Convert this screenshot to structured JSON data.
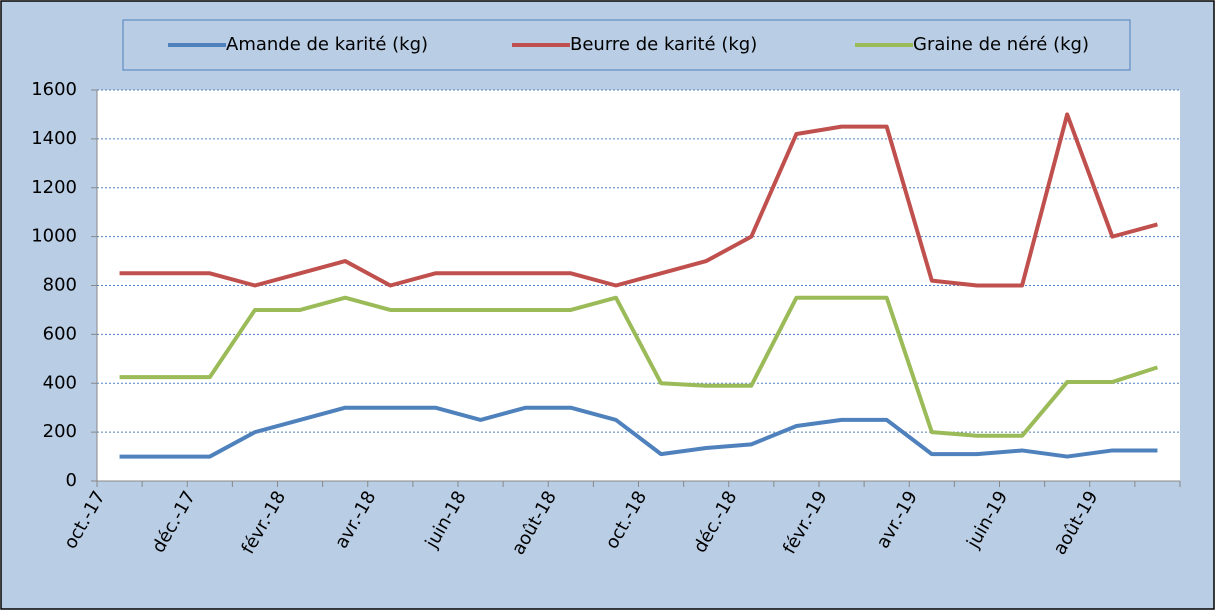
{
  "chart_data": {
    "type": "line",
    "categories": [
      "oct.-17",
      null,
      "déc.-17",
      null,
      "févr.-18",
      null,
      "avr.-18",
      null,
      "juin-18",
      null,
      "août-18",
      null,
      "oct.-18",
      null,
      "déc.-18",
      null,
      "févr.-19",
      null,
      "avr.-19",
      null,
      "juin-19",
      null,
      "août-19",
      null
    ],
    "series": [
      {
        "name": "Amande de karité (kg)",
        "color": "#4f81bd",
        "values": [
          100,
          100,
          100,
          200,
          250,
          300,
          300,
          300,
          250,
          300,
          300,
          250,
          110,
          135,
          150,
          225,
          250,
          250,
          110,
          110,
          125,
          100,
          125,
          125
        ]
      },
      {
        "name": "Beurre de karité (kg)",
        "color": "#c0504d",
        "values": [
          850,
          850,
          850,
          800,
          850,
          900,
          800,
          850,
          850,
          850,
          850,
          800,
          850,
          900,
          1000,
          1420,
          1450,
          1450,
          820,
          800,
          800,
          1500,
          1000,
          1050
        ]
      },
      {
        "name": "Graine de néré (kg)",
        "color": "#9bbb59",
        "values": [
          425,
          425,
          425,
          700,
          700,
          750,
          700,
          700,
          700,
          700,
          700,
          750,
          400,
          390,
          390,
          750,
          750,
          750,
          200,
          185,
          185,
          405,
          405,
          465
        ]
      }
    ],
    "ylim": [
      0,
      1600
    ],
    "yticks": [
      0,
      200,
      400,
      600,
      800,
      1000,
      1200,
      1400,
      1600
    ],
    "grid": true,
    "legend": "top"
  }
}
